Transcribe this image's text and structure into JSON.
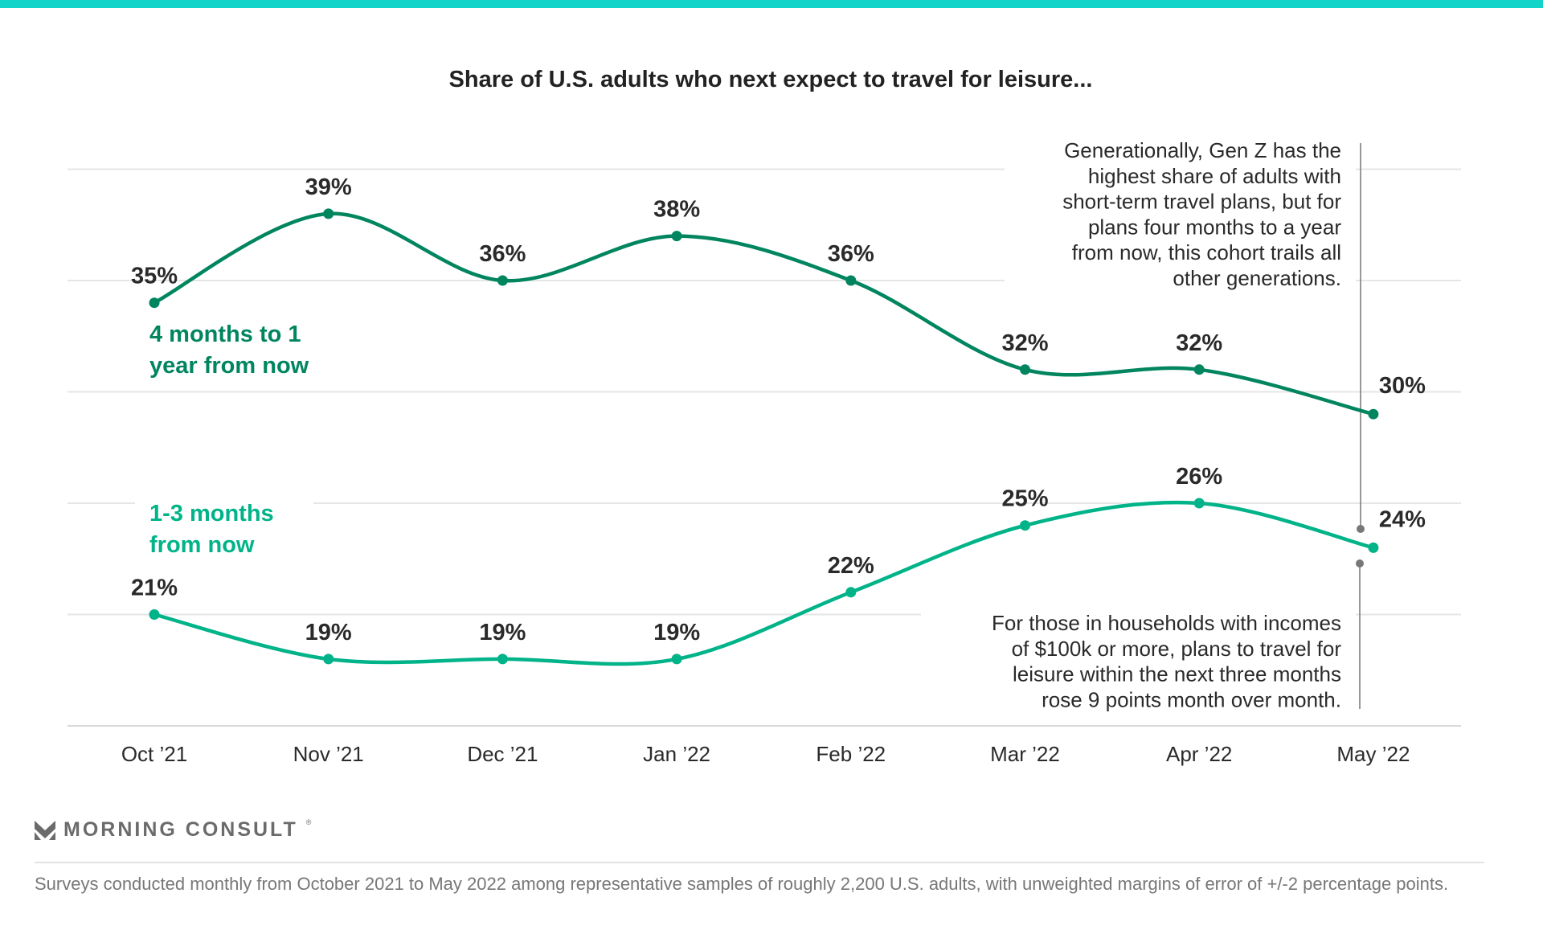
{
  "chart_data": {
    "type": "line",
    "title": "Share of U.S. adults who next expect to travel for leisure...",
    "categories": [
      "Oct ’21",
      "Nov ’21",
      "Dec ’21",
      "Jan ’22",
      "Feb ’22",
      "Mar ’22",
      "Apr ’22",
      "May ’22"
    ],
    "ylim": [
      16,
      41
    ],
    "grid": true,
    "unit": "%",
    "series": [
      {
        "name": "4 months to 1 year from now",
        "name_lines": [
          "4 months to 1",
          "year from now"
        ],
        "color": "#00855f",
        "values": [
          35,
          39,
          36,
          38,
          36,
          32,
          32,
          30
        ]
      },
      {
        "name": "1-3 months from now",
        "name_lines": [
          "1-3 months",
          "from now"
        ],
        "color": "#00b388",
        "values": [
          21,
          19,
          19,
          19,
          22,
          25,
          26,
          24
        ]
      }
    ],
    "annotations": [
      {
        "lines": [
          "Generationally, Gen Z has the",
          "highest share of adults with",
          "short-term travel plans, but for",
          "plans four months to a year",
          "from now, this cohort trails all",
          "other generations."
        ]
      },
      {
        "lines": [
          "For those in households with incomes",
          "of $100k or more, plans to travel for",
          "leisure within the next three months",
          "rose 9 points month over month."
        ]
      }
    ]
  },
  "brand": {
    "name": "MORNING CONSULT",
    "registered": "®",
    "accent": "#12d4c8"
  },
  "footnote": "Surveys conducted monthly from October 2021 to May 2022 among representative samples of roughly 2,200 U.S. adults, with unweighted margins of error of +/-2 percentage points."
}
